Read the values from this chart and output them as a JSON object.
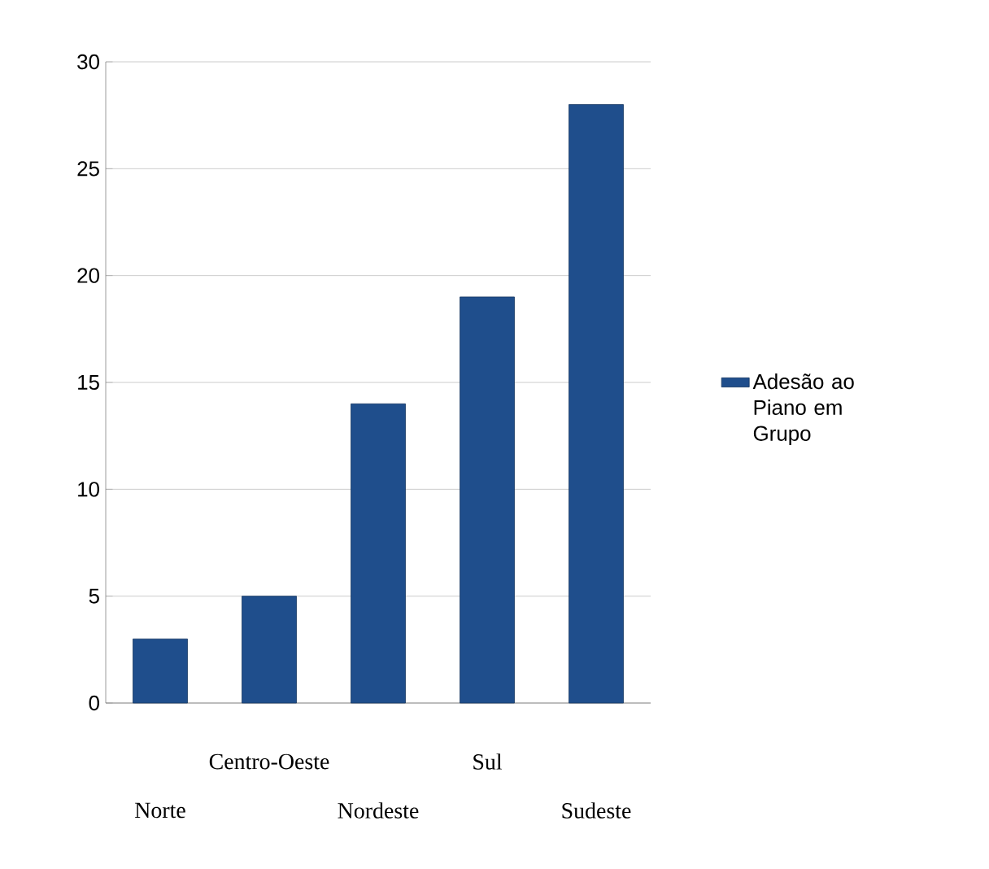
{
  "chart_data": {
    "type": "bar",
    "categories": [
      "Norte",
      "Centro-Oeste",
      "Nordeste",
      "Sul",
      "Sudeste"
    ],
    "series": [
      {
        "name": "Adesão ao Piano em Grupo",
        "color": "#1f4e8c",
        "values": [
          3,
          5,
          14,
          19,
          28
        ]
      }
    ],
    "ylim": [
      0,
      30
    ],
    "yticks": [
      0,
      5,
      10,
      15,
      20,
      25,
      30
    ],
    "grid": "y",
    "legend": "right"
  }
}
